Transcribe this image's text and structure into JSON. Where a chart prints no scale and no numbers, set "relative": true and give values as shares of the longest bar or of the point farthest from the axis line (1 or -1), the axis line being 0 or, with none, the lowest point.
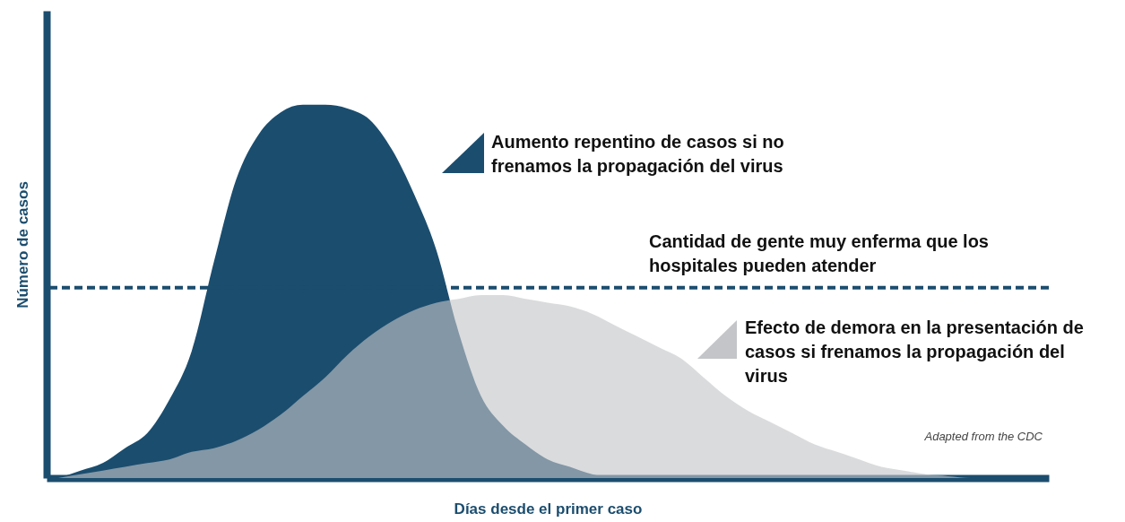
{
  "chart_data": {
    "type": "area",
    "relative": true,
    "xlabel": "Días desde el primer caso",
    "ylabel": "Número de casos",
    "categories": [
      null,
      null,
      null,
      null,
      null,
      null,
      null,
      null,
      null,
      null,
      null,
      null,
      null,
      null,
      null,
      null,
      null,
      null,
      null,
      null,
      null,
      null,
      null,
      null,
      null,
      null,
      null,
      null,
      null,
      null,
      null,
      null,
      null,
      null,
      null,
      null,
      null,
      null,
      null,
      null,
      null,
      null,
      null,
      null,
      null
    ],
    "series": [
      {
        "color": "#1b4d6e",
        "values": [
          0,
          0.02,
          0.04,
          0.08,
          0.12,
          0.21,
          0.34,
          0.58,
          0.8,
          0.92,
          0.98,
          1.0,
          1.0,
          0.99,
          0.96,
          0.88,
          0.76,
          0.61,
          0.39,
          0.22,
          0.14,
          0.09,
          0.05,
          0.03,
          0.01,
          0,
          0,
          0,
          0,
          0,
          0,
          0,
          0,
          0,
          0,
          0,
          0,
          0,
          0,
          0,
          0,
          0,
          0,
          0,
          0
        ]
      },
      {
        "color": "#c4c5c8",
        "values": [
          0,
          0.01,
          0.02,
          0.03,
          0.04,
          0.05,
          0.07,
          0.08,
          0.1,
          0.13,
          0.17,
          0.22,
          0.27,
          0.33,
          0.38,
          0.42,
          0.45,
          0.47,
          0.48,
          0.49,
          0.49,
          0.48,
          0.47,
          0.46,
          0.44,
          0.41,
          0.38,
          0.35,
          0.32,
          0.27,
          0.22,
          0.18,
          0.15,
          0.12,
          0.09,
          0.07,
          0.05,
          0.03,
          0.02,
          0.01,
          0.005,
          0,
          0,
          0,
          0
        ]
      }
    ],
    "ref_lines": [
      {
        "axis": "y",
        "value": 0.51,
        "label": "Cantidad de gente muy enferma que los hospitales pueden atender",
        "color": "#1b4d6e",
        "line_style": "dashed"
      }
    ],
    "annotations": [
      "Aumento repentino de casos si no frenamos la propagación del virus",
      "Efecto de demora en la presentación de casos si frenamos la propagación del virus",
      "Adapted from the CDC"
    ],
    "grid": false
  }
}
